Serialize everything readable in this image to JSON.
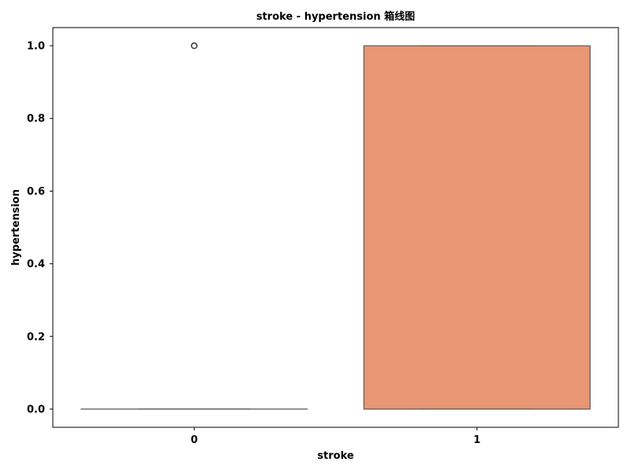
{
  "chart_data": {
    "type": "box",
    "title": "stroke - hypertension 箱线图",
    "xlabel": "stroke",
    "ylabel": "hypertension",
    "categories": [
      "0",
      "1"
    ],
    "ylim": [
      -0.05,
      1.05
    ],
    "yticks": [
      "0.0",
      "0.2",
      "0.4",
      "0.6",
      "0.8",
      "1.0"
    ],
    "ytick_values": [
      0.0,
      0.2,
      0.4,
      0.6,
      0.8,
      1.0
    ],
    "boxes": [
      {
        "category": "0",
        "q1": 0,
        "median": 0,
        "q3": 0,
        "whisker_low": 0,
        "whisker_high": 0,
        "outliers": [
          1
        ],
        "color": "#8da0cb"
      },
      {
        "category": "1",
        "q1": 0,
        "median": 0,
        "q3": 1,
        "whisker_low": 0,
        "whisker_high": 1,
        "outliers": [],
        "color": "#e89674"
      }
    ],
    "grid": false,
    "line_color": "#595959"
  }
}
